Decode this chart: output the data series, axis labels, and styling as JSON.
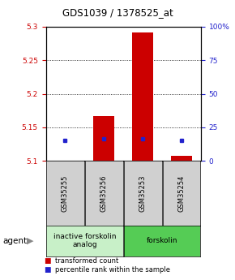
{
  "title": "GDS1039 / 1378525_at",
  "samples": [
    "GSM35255",
    "GSM35256",
    "GSM35253",
    "GSM35254"
  ],
  "red_values": [
    5.101,
    5.167,
    5.291,
    5.108
  ],
  "blue_values": [
    5.131,
    5.133,
    5.133,
    5.131
  ],
  "ylim_left": [
    5.1,
    5.3
  ],
  "ylim_right": [
    0,
    100
  ],
  "yticks_left": [
    5.1,
    5.15,
    5.2,
    5.25,
    5.3
  ],
  "yticks_right": [
    0,
    25,
    50,
    75,
    100
  ],
  "ytick_labels_left": [
    "5.1",
    "5.15",
    "5.2",
    "5.25",
    "5.3"
  ],
  "ytick_labels_right": [
    "0",
    "25",
    "50",
    "75",
    "100%"
  ],
  "grid_yticks": [
    5.15,
    5.2,
    5.25
  ],
  "bar_width": 0.55,
  "red_color": "#cc0000",
  "blue_color": "#2222cc",
  "agent_groups": [
    {
      "label": "inactive forskolin\nanalog",
      "spans": [
        0,
        1
      ],
      "color": "#c8f0c8"
    },
    {
      "label": "forskolin",
      "spans": [
        2,
        3
      ],
      "color": "#55cc55"
    }
  ],
  "agent_label": "agent",
  "legend_items": [
    {
      "color": "#cc0000",
      "label": "transformed count"
    },
    {
      "color": "#2222cc",
      "label": "percentile rank within the sample"
    }
  ],
  "background_label": "#d0d0d0",
  "left_tick_color": "#cc0000",
  "right_tick_color": "#2222cc",
  "title_fontsize": 8.5
}
